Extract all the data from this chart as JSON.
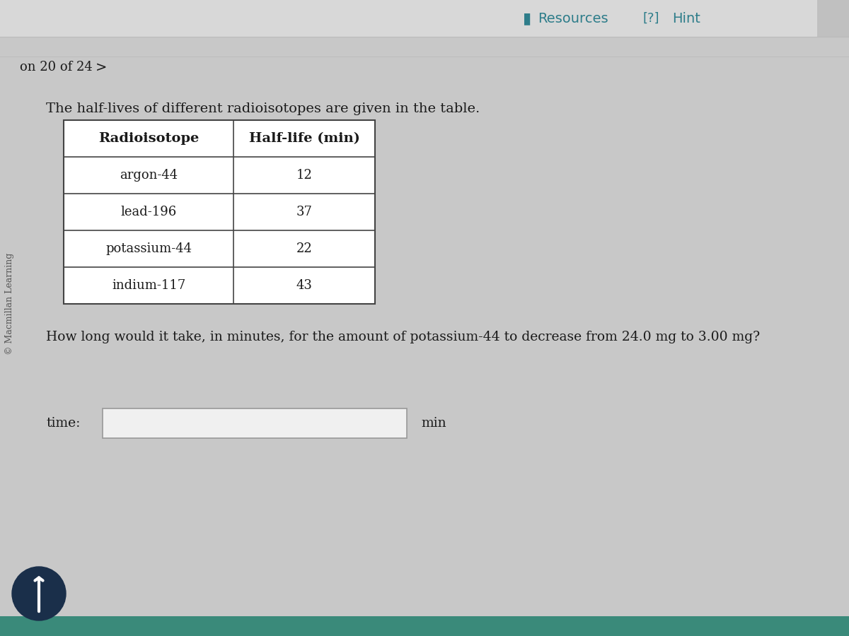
{
  "bg_color": "#c8c8c8",
  "top_bar_color": "#d8d8d8",
  "page_info": "on 20 of 24",
  "copyright": "© Macmillan Learning",
  "resources_label": "Resources",
  "hint_label": "Hint",
  "intro_text": "The half-lives of different radioisotopes are given in the table.",
  "table_headers": [
    "Radioisotope",
    "Half-life (min)"
  ],
  "table_rows": [
    [
      "argon-44",
      "12"
    ],
    [
      "lead-196",
      "37"
    ],
    [
      "potassium-44",
      "22"
    ],
    [
      "indium-117",
      "43"
    ]
  ],
  "question_text": "How long would it take, in minutes, for the amount of potassium-44 to decrease from 24.0 mg to 3.00 mg?",
  "time_label": "time:",
  "unit_label": "min",
  "table_bg": "#ffffff",
  "table_border_color": "#444444",
  "text_color": "#1a1a1a",
  "teal_color": "#2e7d8a",
  "input_box_color": "#f0f0f0",
  "input_box_border": "#999999",
  "arrow_circle_color": "#1a2f4a",
  "separator_color": "#bbbbbb",
  "right_strip_color": "#c0c0c0",
  "bottom_taskbar_color": "#3a8a7a",
  "figwidth": 12.0,
  "figheight": 9.0,
  "dpi": 100
}
